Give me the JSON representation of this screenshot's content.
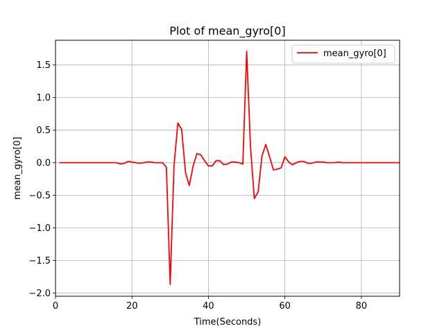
{
  "chart_data": {
    "type": "line",
    "title": "Plot of mean_gyro[0]",
    "xlabel": "Time(Seconds)",
    "ylabel": "mean_gyro[0]",
    "xlim": [
      0,
      90
    ],
    "ylim": [
      -2.05,
      1.88
    ],
    "xticks": [
      0,
      20,
      40,
      60,
      80
    ],
    "yticks": [
      -2.0,
      -1.5,
      -1.0,
      -0.5,
      0.0,
      0.5,
      1.0,
      1.5
    ],
    "xtick_labels": [
      "0",
      "20",
      "40",
      "60",
      "80"
    ],
    "ytick_labels": [
      "−2.0",
      "−1.5",
      "−1.0",
      "−0.5",
      "0.0",
      "0.5",
      "1.0",
      "1.5"
    ],
    "grid": true,
    "legend_position": "top-right",
    "series": [
      {
        "name": "mean_gyro[0]",
        "color": "#ff0000",
        "x": [
          1,
          3,
          5,
          7,
          9,
          11,
          13,
          15,
          16,
          17,
          18,
          19,
          20,
          21,
          22,
          23,
          24,
          25,
          26,
          27,
          28,
          29,
          30,
          31,
          32,
          33,
          34,
          35,
          36,
          37,
          38,
          39,
          40,
          41,
          42,
          43,
          44,
          45,
          46,
          47,
          48,
          49,
          50,
          51,
          52,
          53,
          54,
          55,
          56,
          57,
          58,
          59,
          60,
          61,
          62,
          63,
          64,
          65,
          66,
          67,
          68,
          69,
          70,
          71,
          72,
          73,
          74,
          75,
          76,
          77,
          78,
          79,
          80,
          82,
          84,
          86,
          88,
          90
        ],
        "y": [
          0.0,
          0.0,
          0.0,
          0.0,
          0.0,
          0.0,
          0.0,
          0.0,
          0.0,
          -0.02,
          -0.01,
          0.02,
          0.01,
          0.0,
          -0.01,
          0.0,
          0.01,
          0.01,
          0.0,
          0.0,
          0.0,
          -0.07,
          -1.87,
          -0.05,
          0.61,
          0.51,
          -0.15,
          -0.35,
          -0.05,
          0.14,
          0.12,
          0.03,
          -0.05,
          -0.05,
          0.03,
          0.03,
          -0.03,
          -0.02,
          0.01,
          0.01,
          0.0,
          -0.02,
          1.71,
          0.25,
          -0.55,
          -0.45,
          0.1,
          0.28,
          0.09,
          -0.11,
          -0.1,
          -0.08,
          0.09,
          0.01,
          -0.03,
          0.0,
          0.02,
          0.02,
          -0.01,
          -0.01,
          0.01,
          0.01,
          0.01,
          0.0,
          0.0,
          0.0,
          0.01,
          0.0,
          0.0,
          0.0,
          0.0,
          0.0,
          0.0,
          0.0,
          0.0,
          0.0,
          0.0,
          0.0
        ]
      }
    ]
  }
}
